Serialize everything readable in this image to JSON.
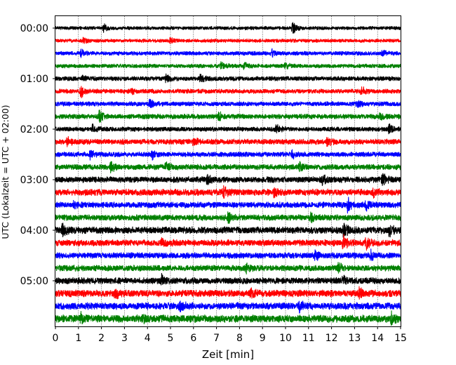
{
  "chart_data": {
    "type": "line",
    "title": "",
    "xlabel": "Zeit  [min]",
    "ylabel": "UTC (Lokalzeit = UTC + 02:00)",
    "xlim": [
      0,
      15
    ],
    "x_ticks": [
      "0",
      "1",
      "2",
      "3",
      "4",
      "5",
      "6",
      "7",
      "8",
      "9",
      "10",
      "11",
      "12",
      "13",
      "14",
      "15"
    ],
    "y_range_hours": [
      0,
      6
    ],
    "y_ticks": [
      "00:00",
      "01:00",
      "02:00",
      "03:00",
      "04:00",
      "05:00"
    ],
    "grid": "vertical dotted lines at each minute",
    "trace_interval_minutes": 15,
    "trace_color_cycle": [
      "#000000",
      "#ff0000",
      "#0000ff",
      "#008000"
    ],
    "traces": [
      {
        "start": "00:00",
        "color": "#000000",
        "amplitude": 0.35,
        "events": [
          [
            2.1,
            0.8
          ],
          [
            10.3,
            1.3
          ]
        ]
      },
      {
        "start": "00:15",
        "color": "#ff0000",
        "amplitude": 0.35,
        "events": [
          [
            1.2,
            0.6
          ],
          [
            5.0,
            0.6
          ]
        ]
      },
      {
        "start": "00:30",
        "color": "#0000ff",
        "amplitude": 0.4,
        "events": [
          [
            1.1,
            0.7
          ],
          [
            9.4,
            0.7
          ],
          [
            14.2,
            0.6
          ]
        ]
      },
      {
        "start": "00:45",
        "color": "#008000",
        "amplitude": 0.4,
        "events": [
          [
            7.2,
            0.7
          ],
          [
            8.2,
            0.8
          ],
          [
            10.0,
            0.6
          ]
        ]
      },
      {
        "start": "01:00",
        "color": "#000000",
        "amplitude": 0.45,
        "events": [
          [
            1.2,
            0.6
          ],
          [
            4.8,
            0.7
          ],
          [
            6.3,
            0.7
          ]
        ]
      },
      {
        "start": "01:15",
        "color": "#ff0000",
        "amplitude": 0.45,
        "events": [
          [
            1.1,
            1.2
          ],
          [
            3.3,
            0.6
          ],
          [
            13.3,
            1.0
          ]
        ]
      },
      {
        "start": "01:30",
        "color": "#0000ff",
        "amplitude": 0.45,
        "events": [
          [
            4.1,
            0.9
          ],
          [
            13.1,
            0.6
          ]
        ]
      },
      {
        "start": "01:45",
        "color": "#008000",
        "amplitude": 0.5,
        "events": [
          [
            1.9,
            1.0
          ],
          [
            7.1,
            0.8
          ],
          [
            14.1,
            0.8
          ]
        ]
      },
      {
        "start": "02:00",
        "color": "#000000",
        "amplitude": 0.45,
        "events": [
          [
            1.6,
            1.0
          ],
          [
            9.6,
            1.1
          ],
          [
            14.5,
            1.0
          ]
        ]
      },
      {
        "start": "02:15",
        "color": "#ff0000",
        "amplitude": 0.55,
        "events": [
          [
            0.5,
            0.9
          ],
          [
            6.0,
            0.8
          ],
          [
            11.8,
            0.8
          ]
        ]
      },
      {
        "start": "02:30",
        "color": "#0000ff",
        "amplitude": 0.5,
        "events": [
          [
            1.5,
            1.0
          ],
          [
            4.2,
            0.7
          ],
          [
            10.3,
            0.7
          ]
        ]
      },
      {
        "start": "02:45",
        "color": "#008000",
        "amplitude": 0.55,
        "events": [
          [
            2.4,
            1.0
          ],
          [
            4.8,
            0.8
          ],
          [
            10.6,
            0.8
          ]
        ]
      },
      {
        "start": "03:00",
        "color": "#000000",
        "amplitude": 0.6,
        "events": [
          [
            6.6,
            1.0
          ],
          [
            11.6,
            1.1
          ],
          [
            14.2,
            1.2
          ]
        ]
      },
      {
        "start": "03:15",
        "color": "#ff0000",
        "amplitude": 0.65,
        "events": [
          [
            7.3,
            0.9
          ],
          [
            9.5,
            0.9
          ],
          [
            13.8,
            0.8
          ]
        ]
      },
      {
        "start": "03:30",
        "color": "#0000ff",
        "amplitude": 0.6,
        "events": [
          [
            0.8,
            0.8
          ],
          [
            12.7,
            1.3
          ],
          [
            13.5,
            0.9
          ]
        ]
      },
      {
        "start": "03:45",
        "color": "#008000",
        "amplitude": 0.6,
        "events": [
          [
            7.5,
            0.9
          ],
          [
            11.1,
            0.8
          ]
        ]
      },
      {
        "start": "04:00",
        "color": "#000000",
        "amplitude": 0.7,
        "events": [
          [
            0.3,
            1.1
          ],
          [
            12.5,
            1.6
          ],
          [
            14.5,
            0.9
          ]
        ]
      },
      {
        "start": "04:15",
        "color": "#ff0000",
        "amplitude": 0.65,
        "events": [
          [
            4.6,
            0.9
          ],
          [
            12.5,
            1.4
          ],
          [
            13.5,
            1.1
          ]
        ]
      },
      {
        "start": "04:30",
        "color": "#0000ff",
        "amplitude": 0.6,
        "events": [
          [
            11.3,
            0.9
          ],
          [
            13.7,
            0.9
          ]
        ]
      },
      {
        "start": "04:45",
        "color": "#008000",
        "amplitude": 0.6,
        "events": [
          [
            8.3,
            1.0
          ],
          [
            12.3,
            1.1
          ]
        ]
      },
      {
        "start": "05:00",
        "color": "#000000",
        "amplitude": 0.65,
        "events": [
          [
            4.6,
            1.0
          ],
          [
            12.5,
            1.0
          ]
        ]
      },
      {
        "start": "05:15",
        "color": "#ff0000",
        "amplitude": 0.7,
        "events": [
          [
            2.6,
            1.0
          ],
          [
            8.5,
            0.8
          ],
          [
            13.2,
            0.9
          ]
        ]
      },
      {
        "start": "05:30",
        "color": "#0000ff",
        "amplitude": 0.7,
        "events": [
          [
            5.4,
            0.9
          ],
          [
            10.6,
            0.8
          ]
        ]
      },
      {
        "start": "05:45",
        "color": "#008000",
        "amplitude": 0.75,
        "events": [
          [
            1.1,
            1.0
          ],
          [
            3.8,
            0.8
          ],
          [
            14.6,
            1.1
          ]
        ]
      }
    ]
  }
}
